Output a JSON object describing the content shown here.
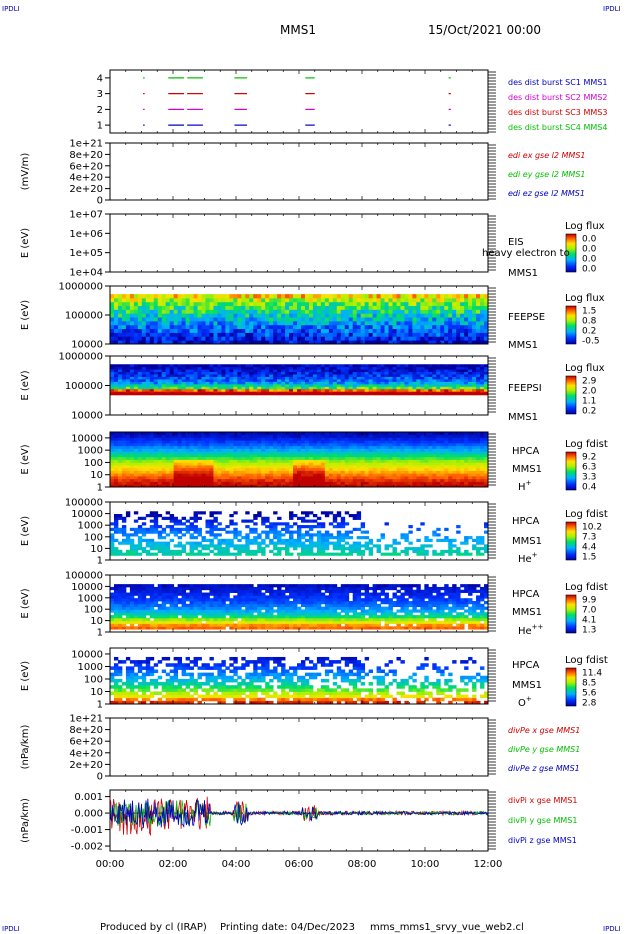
{
  "corner_label": "IPDLI",
  "header": {
    "spacecraft": "MMS1",
    "date": "15/Oct/2021 00:00"
  },
  "footer": {
    "producer": "Produced by cl (IRAP)",
    "printing": "Printing date: 04/Dec/2023",
    "script": "mms_mms1_srvy_vue_web2.cl"
  },
  "colors": {
    "red": "#d00000",
    "green": "#00c000",
    "blue": "#0000c0",
    "magenta": "#d000d0",
    "black": "#000000"
  },
  "chart_data": [
    {
      "type": "line",
      "panel": "burst",
      "yticks": [
        "1",
        "2",
        "3",
        "4"
      ],
      "ylim": [
        0.5,
        4.5
      ],
      "xlabels": [
        "00:00",
        "02:00",
        "04:00",
        "06:00",
        "08:00",
        "10:00",
        "12:00"
      ],
      "xlim_hours": [
        0,
        12
      ],
      "series": [
        {
          "name": "des dist burst SC1 MMS1",
          "level": 1,
          "color": "#0000c0",
          "intervals": [
            [
              1.05,
              1.1
            ],
            [
              1.85,
              2.35
            ],
            [
              2.45,
              2.95
            ],
            [
              3.95,
              4.35
            ],
            [
              6.2,
              6.5
            ],
            [
              10.75,
              10.82
            ]
          ]
        },
        {
          "name": "des dist burst SC2 MMS2",
          "level": 2,
          "color": "#d000d0",
          "intervals": [
            [
              1.05,
              1.1
            ],
            [
              1.85,
              2.35
            ],
            [
              2.45,
              2.95
            ],
            [
              3.95,
              4.35
            ],
            [
              6.2,
              6.5
            ],
            [
              10.75,
              10.82
            ]
          ]
        },
        {
          "name": "des dist burst SC3 MMS3",
          "level": 3,
          "color": "#d00000",
          "intervals": [
            [
              1.05,
              1.1
            ],
            [
              1.85,
              2.35
            ],
            [
              2.45,
              2.95
            ],
            [
              3.95,
              4.35
            ],
            [
              6.2,
              6.5
            ],
            [
              10.75,
              10.82
            ]
          ]
        },
        {
          "name": "des dist burst SC4 MMS4",
          "level": 4,
          "color": "#00c000",
          "intervals": [
            [
              1.05,
              1.1
            ],
            [
              1.85,
              2.35
            ],
            [
              2.45,
              2.95
            ],
            [
              3.95,
              4.35
            ],
            [
              6.2,
              6.5
            ],
            [
              10.75,
              10.82
            ]
          ]
        }
      ]
    },
    {
      "type": "line",
      "panel": "edi",
      "ylabel": "(mV/m)",
      "yticks": [
        "0",
        "2e+20",
        "4e+20",
        "6e+20",
        "8e+20",
        "1e+21"
      ],
      "ylim": [
        0,
        1e+21
      ],
      "zero_line": true,
      "series": [
        {
          "name": "edi ex gse l2 MMS1",
          "color": "#d00000",
          "values": []
        },
        {
          "name": "edi ey gse l2 MMS1",
          "color": "#00c000",
          "values": []
        },
        {
          "name": "edi ez gse l2 MMS1",
          "color": "#0000c0",
          "values": []
        }
      ]
    },
    {
      "type": "heatmap",
      "panel": "eis",
      "ylabel": "E (eV)",
      "yticks": [
        "1e+04",
        "1e+05",
        "1e+06",
        "1e+07"
      ],
      "ylim": [
        10000,
        10000000
      ],
      "instrument": [
        "EIS",
        "MMS1"
      ],
      "overlay_text": "heavy electron to",
      "colorbar_title": "Log flux",
      "colorbar_ticks": [
        "0.0",
        "0.0",
        "0.0",
        "0.0"
      ],
      "empty": true
    },
    {
      "type": "heatmap",
      "panel": "feepse",
      "ylabel": "E (eV)",
      "yticks": [
        "10000",
        "100000",
        "1000000"
      ],
      "ylim": [
        10000,
        1000000
      ],
      "instrument": [
        "FEEPSE",
        "MMS1"
      ],
      "colorbar_title": "Log flux",
      "colorbar_ticks": [
        "1.5",
        "0.8",
        "0.2",
        "-0.5"
      ],
      "profile": [
        -0.4,
        -0.3,
        -0.2,
        -0.1,
        0.0,
        0.1,
        0.2,
        0.3,
        0.4,
        0.5,
        0.6,
        0.8,
        1.0
      ],
      "fill_from_frac": 0.0,
      "fill_to_frac": 0.86,
      "vmin": -0.5,
      "vmax": 1.5
    },
    {
      "type": "heatmap",
      "panel": "feepsi",
      "ylabel": "E (eV)",
      "yticks": [
        "10000",
        "100000",
        "1000000"
      ],
      "ylim": [
        10000,
        1000000
      ],
      "instrument": [
        "FEEPSI",
        "MMS1"
      ],
      "colorbar_title": "Log flux",
      "colorbar_ticks": [
        "2.9",
        "2.0",
        "1.1",
        "0.2"
      ],
      "profile": [
        2.9,
        2.6,
        1.6,
        1.3,
        1.0,
        0.8,
        0.7,
        0.6,
        0.5,
        0.4,
        0.3,
        0.2
      ],
      "fill_from_frac": 0.36,
      "fill_to_frac": 0.86,
      "vmin": 0.2,
      "vmax": 2.9
    },
    {
      "type": "heatmap",
      "panel": "hpca_h",
      "ylabel": "E (eV)",
      "yticks": [
        "1",
        "10",
        "100",
        "1000",
        "10000"
      ],
      "ylim": [
        1,
        30000
      ],
      "instrument": [
        "HPCA",
        "MMS1",
        "H+"
      ],
      "colorbar_title": "Log fdist",
      "colorbar_ticks": [
        "9.2",
        "6.3",
        "3.3",
        "0.4"
      ],
      "profile": [
        9.2,
        9.0,
        8.7,
        8.3,
        7.9,
        7.5,
        7.1,
        6.6,
        6.1,
        5.6,
        5.0,
        4.4,
        3.8,
        3.2,
        2.7,
        2.2,
        1.8,
        1.4,
        1.0,
        0.7
      ],
      "fill_from_frac": 0.0,
      "fill_to_frac": 1.0,
      "vmin": 0.4,
      "vmax": 9.2
    },
    {
      "type": "heatmap",
      "panel": "hpca_he",
      "ylabel": "E (eV)",
      "yticks": [
        "1",
        "10",
        "100",
        "1000",
        "10000",
        "100000"
      ],
      "ylim": [
        1,
        100000
      ],
      "instrument": [
        "HPCA",
        "MMS1",
        "He+"
      ],
      "colorbar_title": "Log fdist",
      "colorbar_ticks": [
        "10.2",
        "7.3",
        "4.4",
        "1.5"
      ],
      "profile": [
        5.2,
        5.0,
        4.8,
        4.6,
        4.4,
        4.2,
        4.0,
        3.8,
        3.6,
        3.3,
        3.0,
        2.7,
        2.4,
        2.1,
        1.8,
        1.6
      ],
      "fill_from_frac": 0.08,
      "fill_to_frac": 0.84,
      "sparse": 0.45,
      "vmin": 1.5,
      "vmax": 10.2
    },
    {
      "type": "heatmap",
      "panel": "hpca_hepp",
      "ylabel": "E (eV)",
      "yticks": [
        "1",
        "10",
        "100",
        "1000",
        "10000",
        "100000"
      ],
      "ylim": [
        1,
        100000
      ],
      "instrument": [
        "HPCA",
        "MMS1",
        "He++"
      ],
      "colorbar_title": "Log fdist",
      "colorbar_ticks": [
        "9.9",
        "7.0",
        "4.1",
        "1.3"
      ],
      "profile": [
        8.8,
        8.4,
        7.4,
        6.4,
        5.4,
        4.6,
        4.0,
        3.6,
        3.3,
        3.0,
        2.7,
        2.5,
        2.3,
        2.1,
        1.9,
        1.7
      ],
      "fill_from_frac": 0.05,
      "fill_to_frac": 0.84,
      "sparse": 0.08,
      "vmin": 1.3,
      "vmax": 9.9
    },
    {
      "type": "heatmap",
      "panel": "hpca_o",
      "ylabel": "E (eV)",
      "yticks": [
        "1",
        "10",
        "100",
        "1000",
        "10000"
      ],
      "ylim": [
        1,
        30000
      ],
      "instrument": [
        "HPCA",
        "MMS1",
        "O+"
      ],
      "colorbar_title": "Log fdist",
      "colorbar_ticks": [
        "11.4",
        "8.5",
        "5.6",
        "2.8"
      ],
      "profile": [
        11.0,
        10.2,
        9.0,
        8.2,
        7.5,
        6.9,
        6.4,
        5.9,
        5.5,
        5.1,
        4.7,
        4.3,
        4.0,
        3.7,
        3.4
      ],
      "fill_from_frac": 0.0,
      "fill_to_frac": 0.84,
      "sparse": 0.35,
      "vmin": 2.8,
      "vmax": 11.4
    },
    {
      "type": "line",
      "panel": "divpe",
      "ylabel": "(nPa/km)",
      "yticks": [
        "0",
        "2e+20",
        "4e+20",
        "6e+20",
        "8e+20",
        "1e+21"
      ],
      "ylim": [
        0,
        1e+21
      ],
      "zero_line": true,
      "series": [
        {
          "name": "divPe x gse MMS1",
          "color": "#d00000",
          "values": []
        },
        {
          "name": "divPe y gse MMS1",
          "color": "#00c000",
          "values": []
        },
        {
          "name": "divPe z gse MMS1",
          "color": "#0000c0",
          "values": []
        }
      ]
    },
    {
      "type": "line",
      "panel": "divpi",
      "ylabel": "(nPa/km)",
      "yticks": [
        "-0.002",
        "-0.001",
        "0.000",
        "0.001"
      ],
      "ylim": [
        -0.0023,
        0.0014
      ],
      "series": [
        {
          "name": "divPi x gse MMS1",
          "color": "#d00000",
          "amplitude": 0.001
        },
        {
          "name": "divPi y gse MMS1",
          "color": "#00c000",
          "amplitude": 0.0008
        },
        {
          "name": "divPi z gse MMS1",
          "color": "#0000c0",
          "amplitude": 0.0009
        }
      ]
    }
  ]
}
